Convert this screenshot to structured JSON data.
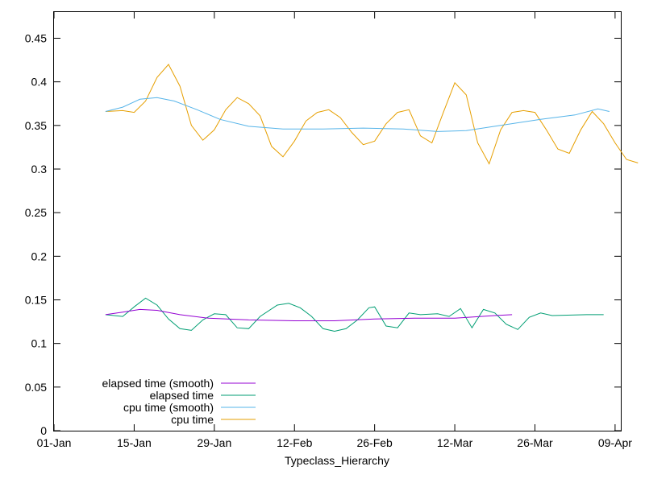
{
  "chart_data": {
    "type": "line",
    "title": "",
    "xlabel": "Typeclass_Hierarchy",
    "ylabel": "",
    "x_ticks": [
      "01-Jan",
      "15-Jan",
      "29-Jan",
      "12-Feb",
      "26-Feb",
      "12-Mar",
      "26-Mar",
      "09-Apr"
    ],
    "x_range": [
      "2024-01-01",
      "2024-04-09"
    ],
    "y_ticks": [
      "0",
      "0.05",
      "0.1",
      "0.15",
      "0.2",
      "0.25",
      "0.3",
      "0.35",
      "0.4",
      "0.45"
    ],
    "ylim": [
      0,
      0.48
    ],
    "grid": false,
    "legend_position": "bottom-left",
    "series": [
      {
        "name": "elapsed time (smooth)",
        "color": "#9400d3",
        "points": [
          [
            "2024-01-10",
            0.133
          ],
          [
            "2024-01-13",
            0.136
          ],
          [
            "2024-01-16",
            0.139
          ],
          [
            "2024-01-19",
            0.138
          ],
          [
            "2024-01-23",
            0.133
          ],
          [
            "2024-01-28",
            0.129
          ],
          [
            "2024-02-04",
            0.127
          ],
          [
            "2024-02-12",
            0.126
          ],
          [
            "2024-02-19",
            0.126
          ],
          [
            "2024-02-26",
            0.128
          ],
          [
            "2024-03-04",
            0.129
          ],
          [
            "2024-03-11",
            0.129
          ],
          [
            "2024-03-18",
            0.132
          ],
          [
            "2024-03-21",
            0.133
          ]
        ]
      },
      {
        "name": "elapsed time",
        "color": "#009e73",
        "points": [
          [
            "2024-01-10",
            0.133
          ],
          [
            "2024-01-13",
            0.131
          ],
          [
            "2024-01-15",
            0.142
          ],
          [
            "2024-01-17",
            0.152
          ],
          [
            "2024-01-19",
            0.144
          ],
          [
            "2024-01-21",
            0.128
          ],
          [
            "2024-01-23",
            0.117
          ],
          [
            "2024-01-25",
            0.115
          ],
          [
            "2024-01-27",
            0.127
          ],
          [
            "2024-01-29",
            0.134
          ],
          [
            "2024-01-31",
            0.133
          ],
          [
            "2024-02-02",
            0.118
          ],
          [
            "2024-02-04",
            0.117
          ],
          [
            "2024-02-06",
            0.131
          ],
          [
            "2024-02-09",
            0.144
          ],
          [
            "2024-02-11",
            0.146
          ],
          [
            "2024-02-13",
            0.141
          ],
          [
            "2024-02-15",
            0.131
          ],
          [
            "2024-02-17",
            0.117
          ],
          [
            "2024-02-19",
            0.114
          ],
          [
            "2024-02-21",
            0.117
          ],
          [
            "2024-02-23",
            0.127
          ],
          [
            "2024-02-25",
            0.141
          ],
          [
            "2024-02-26",
            0.142
          ],
          [
            "2024-02-28",
            0.12
          ],
          [
            "2024-03-01",
            0.118
          ],
          [
            "2024-03-03",
            0.135
          ],
          [
            "2024-03-05",
            0.133
          ],
          [
            "2024-03-08",
            0.134
          ],
          [
            "2024-03-10",
            0.131
          ],
          [
            "2024-03-12",
            0.14
          ],
          [
            "2024-03-14",
            0.118
          ],
          [
            "2024-03-16",
            0.139
          ],
          [
            "2024-03-18",
            0.135
          ],
          [
            "2024-03-20",
            0.122
          ],
          [
            "2024-03-22",
            0.116
          ],
          [
            "2024-03-24",
            0.13
          ],
          [
            "2024-03-26",
            0.135
          ],
          [
            "2024-03-28",
            0.132
          ],
          [
            "2024-04-03",
            0.133
          ],
          [
            "2024-04-06",
            0.133
          ]
        ]
      },
      {
        "name": "cpu time (smooth)",
        "color": "#56b4e9",
        "points": [
          [
            "2024-01-10",
            0.366
          ],
          [
            "2024-01-13",
            0.371
          ],
          [
            "2024-01-16",
            0.38
          ],
          [
            "2024-01-19",
            0.382
          ],
          [
            "2024-01-22",
            0.378
          ],
          [
            "2024-01-26",
            0.368
          ],
          [
            "2024-01-30",
            0.357
          ],
          [
            "2024-02-04",
            0.349
          ],
          [
            "2024-02-10",
            0.346
          ],
          [
            "2024-02-17",
            0.346
          ],
          [
            "2024-02-24",
            0.347
          ],
          [
            "2024-03-02",
            0.346
          ],
          [
            "2024-03-08",
            0.343
          ],
          [
            "2024-03-13",
            0.344
          ],
          [
            "2024-03-19",
            0.35
          ],
          [
            "2024-03-26",
            0.357
          ],
          [
            "2024-04-01",
            0.362
          ],
          [
            "2024-04-05",
            0.369
          ],
          [
            "2024-04-07",
            0.366
          ]
        ]
      },
      {
        "name": "cpu time",
        "color": "#e69f00",
        "points": [
          [
            "2024-01-10",
            0.366
          ],
          [
            "2024-01-13",
            0.367
          ],
          [
            "2024-01-15",
            0.365
          ],
          [
            "2024-01-17",
            0.378
          ],
          [
            "2024-01-19",
            0.405
          ],
          [
            "2024-01-21",
            0.42
          ],
          [
            "2024-01-23",
            0.395
          ],
          [
            "2024-01-25",
            0.35
          ],
          [
            "2024-01-27",
            0.333
          ],
          [
            "2024-01-29",
            0.345
          ],
          [
            "2024-01-31",
            0.368
          ],
          [
            "2024-02-02",
            0.382
          ],
          [
            "2024-02-04",
            0.375
          ],
          [
            "2024-02-06",
            0.361
          ],
          [
            "2024-02-08",
            0.326
          ],
          [
            "2024-02-10",
            0.314
          ],
          [
            "2024-02-12",
            0.332
          ],
          [
            "2024-02-14",
            0.355
          ],
          [
            "2024-02-16",
            0.365
          ],
          [
            "2024-02-18",
            0.368
          ],
          [
            "2024-02-20",
            0.359
          ],
          [
            "2024-02-22",
            0.342
          ],
          [
            "2024-02-24",
            0.328
          ],
          [
            "2024-02-26",
            0.332
          ],
          [
            "2024-02-28",
            0.352
          ],
          [
            "2024-03-01",
            0.365
          ],
          [
            "2024-03-03",
            0.368
          ],
          [
            "2024-03-05",
            0.338
          ],
          [
            "2024-03-07",
            0.33
          ],
          [
            "2024-03-09",
            0.365
          ],
          [
            "2024-03-11",
            0.399
          ],
          [
            "2024-03-13",
            0.385
          ],
          [
            "2024-03-15",
            0.33
          ],
          [
            "2024-03-17",
            0.306
          ],
          [
            "2024-03-19",
            0.345
          ],
          [
            "2024-03-21",
            0.365
          ],
          [
            "2024-03-23",
            0.367
          ],
          [
            "2024-03-25",
            0.365
          ],
          [
            "2024-03-27",
            0.345
          ],
          [
            "2024-03-29",
            0.323
          ],
          [
            "2024-03-31",
            0.318
          ],
          [
            "2024-04-02",
            0.345
          ],
          [
            "2024-04-04",
            0.366
          ],
          [
            "2024-04-06",
            0.352
          ],
          [
            "2024-04-08",
            0.33
          ],
          [
            "2024-04-10",
            0.311
          ],
          [
            "2024-04-12",
            0.307
          ]
        ]
      }
    ]
  }
}
